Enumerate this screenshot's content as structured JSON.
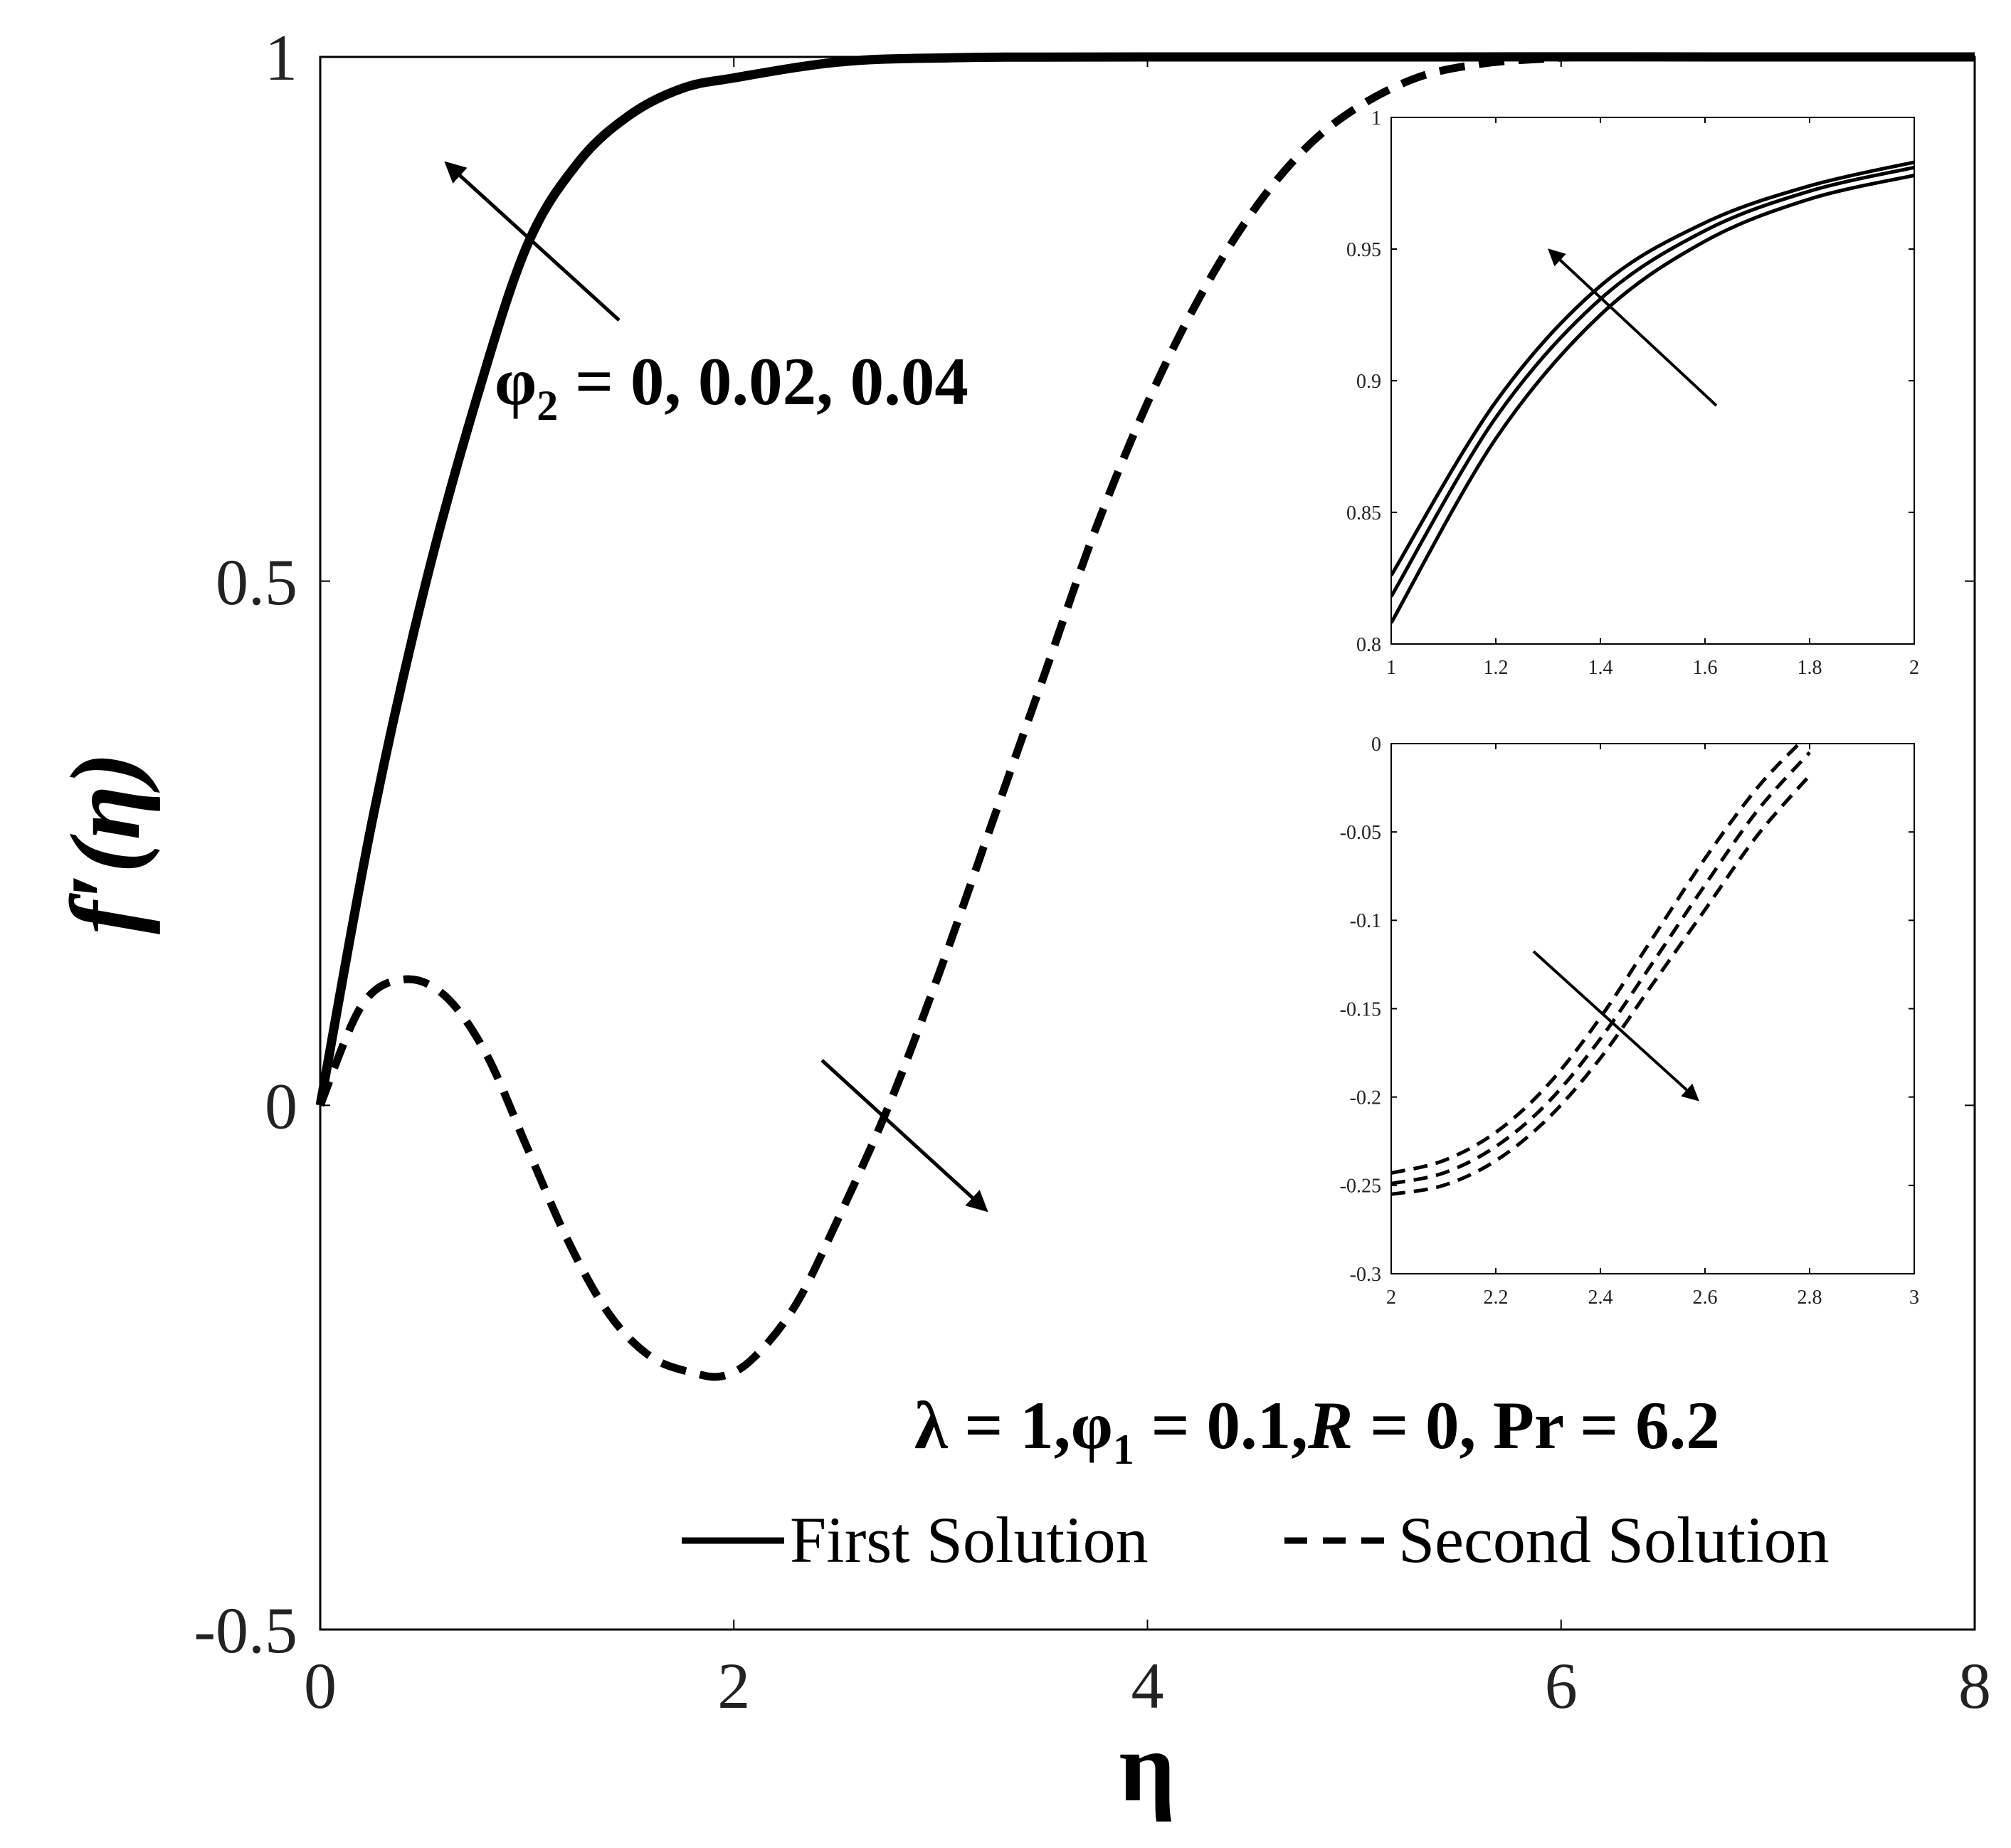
{
  "chart_data": [
    {
      "type": "line",
      "xlabel": "η",
      "ylabel": "f′(η)",
      "xlim": [
        0,
        8
      ],
      "ylim": [
        -0.5,
        1
      ],
      "xticks": [
        "0",
        "2",
        "4",
        "6",
        "8"
      ],
      "yticks": [
        "-0.5",
        "0",
        "0.5",
        "1"
      ],
      "legend": {
        "placement": "bottom-right",
        "solid": "First Solution",
        "dashed": "Second Solution"
      },
      "params_label": {
        "lambda": "λ = 1,",
        "phi1_a": "φ",
        "phi1_sub": "1",
        "phi1_b": " = 0.1,",
        "R": "R",
        "R_rest": " = 0,",
        "Pr": " Pr = 6.2"
      },
      "phi2_label": {
        "sym": "φ",
        "sub": "2",
        "rest": " = 0, 0.02, 0.04"
      },
      "series": [
        {
          "name": "First Solution",
          "style": "solid",
          "values": "x: 0–8, f′ rises from 0 to 1 (≈0.82 at η=1, ≈0.98 at η=2)",
          "x": [
            0,
            0.25,
            0.5,
            0.75,
            1,
            1.25,
            1.5,
            1.75,
            2,
            2.5,
            3,
            4,
            8
          ],
          "y": [
            0,
            0.27,
            0.49,
            0.67,
            0.82,
            0.9,
            0.945,
            0.97,
            0.98,
            0.995,
            0.999,
            1,
            1
          ]
        },
        {
          "name": "Second Solution",
          "style": "dashed",
          "x": [
            0,
            0.2,
            0.4,
            0.6,
            0.8,
            1.0,
            1.2,
            1.4,
            1.6,
            1.8,
            1.95,
            2.1,
            2.3,
            2.5,
            2.75,
            3.0,
            3.25,
            3.5,
            3.75,
            4.0,
            4.25,
            4.5,
            4.75,
            5.0,
            5.3,
            5.6,
            5.9,
            6.3,
            8
          ],
          "y": [
            0,
            0.095,
            0.12,
            0.105,
            0.05,
            -0.04,
            -0.13,
            -0.2,
            -0.24,
            -0.255,
            -0.258,
            -0.24,
            -0.19,
            -0.11,
            0.0,
            0.13,
            0.27,
            0.41,
            0.55,
            0.67,
            0.77,
            0.85,
            0.91,
            0.95,
            0.98,
            0.993,
            0.998,
            1,
            1
          ]
        }
      ]
    },
    {
      "type": "line",
      "inset": "upper",
      "xlim": [
        1,
        2
      ],
      "ylim": [
        0.8,
        1
      ],
      "xticks": [
        "1",
        "1.2",
        "1.4",
        "1.6",
        "1.8",
        "2"
      ],
      "yticks": [
        "0.8",
        "0.85",
        "0.9",
        "0.95",
        "1"
      ],
      "series": [
        {
          "style": "solid",
          "x": [
            1,
            1.2,
            1.4,
            1.6,
            1.8,
            2
          ],
          "y": [
            0.826,
            0.892,
            0.936,
            0.96,
            0.974,
            0.983
          ]
        },
        {
          "style": "solid",
          "x": [
            1,
            1.2,
            1.4,
            1.6,
            1.8,
            2
          ],
          "y": [
            0.818,
            0.886,
            0.931,
            0.957,
            0.972,
            0.981
          ]
        },
        {
          "style": "solid",
          "x": [
            1,
            1.2,
            1.4,
            1.6,
            1.8,
            2
          ],
          "y": [
            0.808,
            0.878,
            0.925,
            0.953,
            0.969,
            0.978
          ]
        }
      ]
    },
    {
      "type": "line",
      "inset": "lower",
      "xlim": [
        2,
        3
      ],
      "ylim": [
        -0.3,
        0
      ],
      "xticks": [
        "2",
        "2.2",
        "2.4",
        "2.6",
        "2.8",
        "3"
      ],
      "yticks": [
        "-0.3",
        "-0.25",
        "-0.2",
        "-0.15",
        "-0.1",
        "-0.05",
        "0"
      ],
      "series": [
        {
          "style": "dashed",
          "x": [
            2,
            2.1,
            2.2,
            2.3,
            2.4,
            2.5,
            2.6,
            2.7,
            2.78
          ],
          "y": [
            -0.243,
            -0.236,
            -0.22,
            -0.193,
            -0.155,
            -0.11,
            -0.065,
            -0.025,
            0.0
          ]
        },
        {
          "style": "dashed",
          "x": [
            2,
            2.1,
            2.2,
            2.3,
            2.4,
            2.5,
            2.6,
            2.7,
            2.8
          ],
          "y": [
            -0.249,
            -0.243,
            -0.228,
            -0.203,
            -0.167,
            -0.124,
            -0.08,
            -0.038,
            -0.005
          ]
        },
        {
          "style": "dashed",
          "x": [
            2,
            2.1,
            2.2,
            2.3,
            2.4,
            2.5,
            2.6,
            2.7,
            2.8
          ],
          "y": [
            -0.255,
            -0.25,
            -0.236,
            -0.212,
            -0.178,
            -0.136,
            -0.094,
            -0.052,
            -0.018
          ]
        }
      ]
    }
  ]
}
